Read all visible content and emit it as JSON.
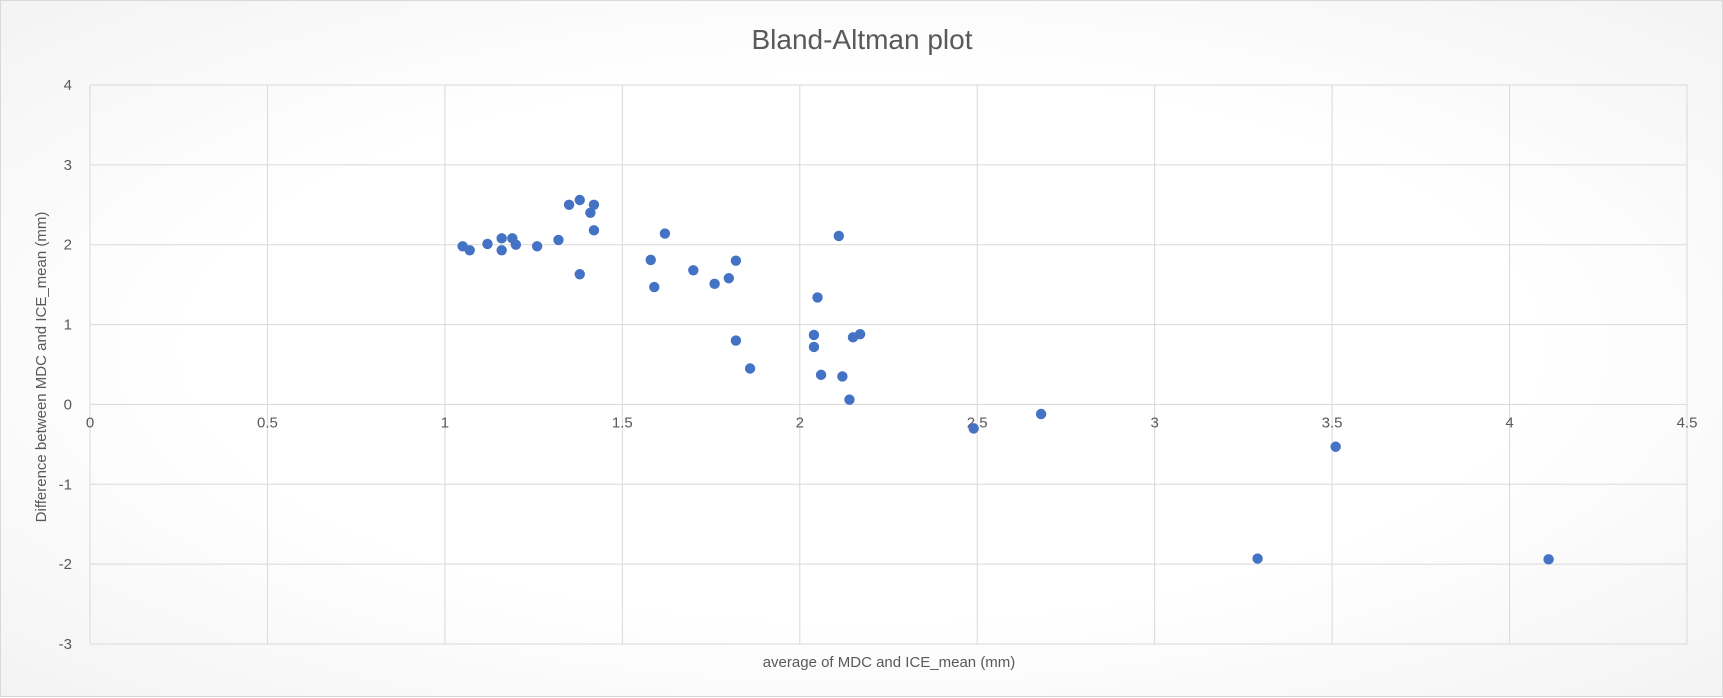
{
  "chart_data": {
    "type": "scatter",
    "title": "Bland-Altman  plot",
    "xlabel": "average of MDC and ICE_mean (mm)",
    "ylabel": "Difference between MDC and ICE_mean (mm)",
    "xlim": [
      0,
      4.5
    ],
    "ylim": [
      -3,
      4
    ],
    "x_ticks": [
      0,
      0.5,
      1,
      1.5,
      2,
      2.5,
      3,
      3.5,
      4,
      4.5
    ],
    "x_tick_labels": [
      "0",
      "0.5",
      "1",
      "1.5",
      "2",
      "2.5",
      "3",
      "3.5",
      "4",
      "4.5"
    ],
    "y_ticks": [
      -3,
      -2,
      -1,
      0,
      1,
      2,
      3,
      4
    ],
    "y_tick_labels": [
      "-3",
      "-2",
      "-1",
      "0",
      "1",
      "2",
      "3",
      "4"
    ],
    "grid": true,
    "legend": "none",
    "marker_color": "#4472c4",
    "series": [
      {
        "points": [
          [
            1.05,
            1.98
          ],
          [
            1.07,
            1.93
          ],
          [
            1.12,
            2.01
          ],
          [
            1.16,
            2.08
          ],
          [
            1.16,
            1.93
          ],
          [
            1.19,
            2.08
          ],
          [
            1.2,
            2.0
          ],
          [
            1.26,
            1.98
          ],
          [
            1.32,
            2.06
          ],
          [
            1.35,
            2.5
          ],
          [
            1.38,
            2.56
          ],
          [
            1.38,
            1.63
          ],
          [
            1.41,
            2.4
          ],
          [
            1.42,
            2.5
          ],
          [
            1.42,
            2.18
          ],
          [
            1.58,
            1.81
          ],
          [
            1.59,
            1.47
          ],
          [
            1.62,
            2.14
          ],
          [
            1.7,
            1.68
          ],
          [
            1.76,
            1.51
          ],
          [
            1.8,
            1.58
          ],
          [
            1.82,
            1.8
          ],
          [
            1.82,
            0.8
          ],
          [
            1.86,
            0.45
          ],
          [
            2.04,
            0.87
          ],
          [
            2.04,
            0.72
          ],
          [
            2.05,
            1.34
          ],
          [
            2.06,
            0.37
          ],
          [
            2.11,
            2.11
          ],
          [
            2.12,
            0.35
          ],
          [
            2.14,
            0.06
          ],
          [
            2.15,
            0.84
          ],
          [
            2.17,
            0.88
          ],
          [
            2.49,
            -0.3
          ],
          [
            2.68,
            -0.12
          ],
          [
            3.29,
            -1.93
          ],
          [
            3.51,
            -0.53
          ],
          [
            4.11,
            -1.94
          ]
        ]
      }
    ]
  }
}
